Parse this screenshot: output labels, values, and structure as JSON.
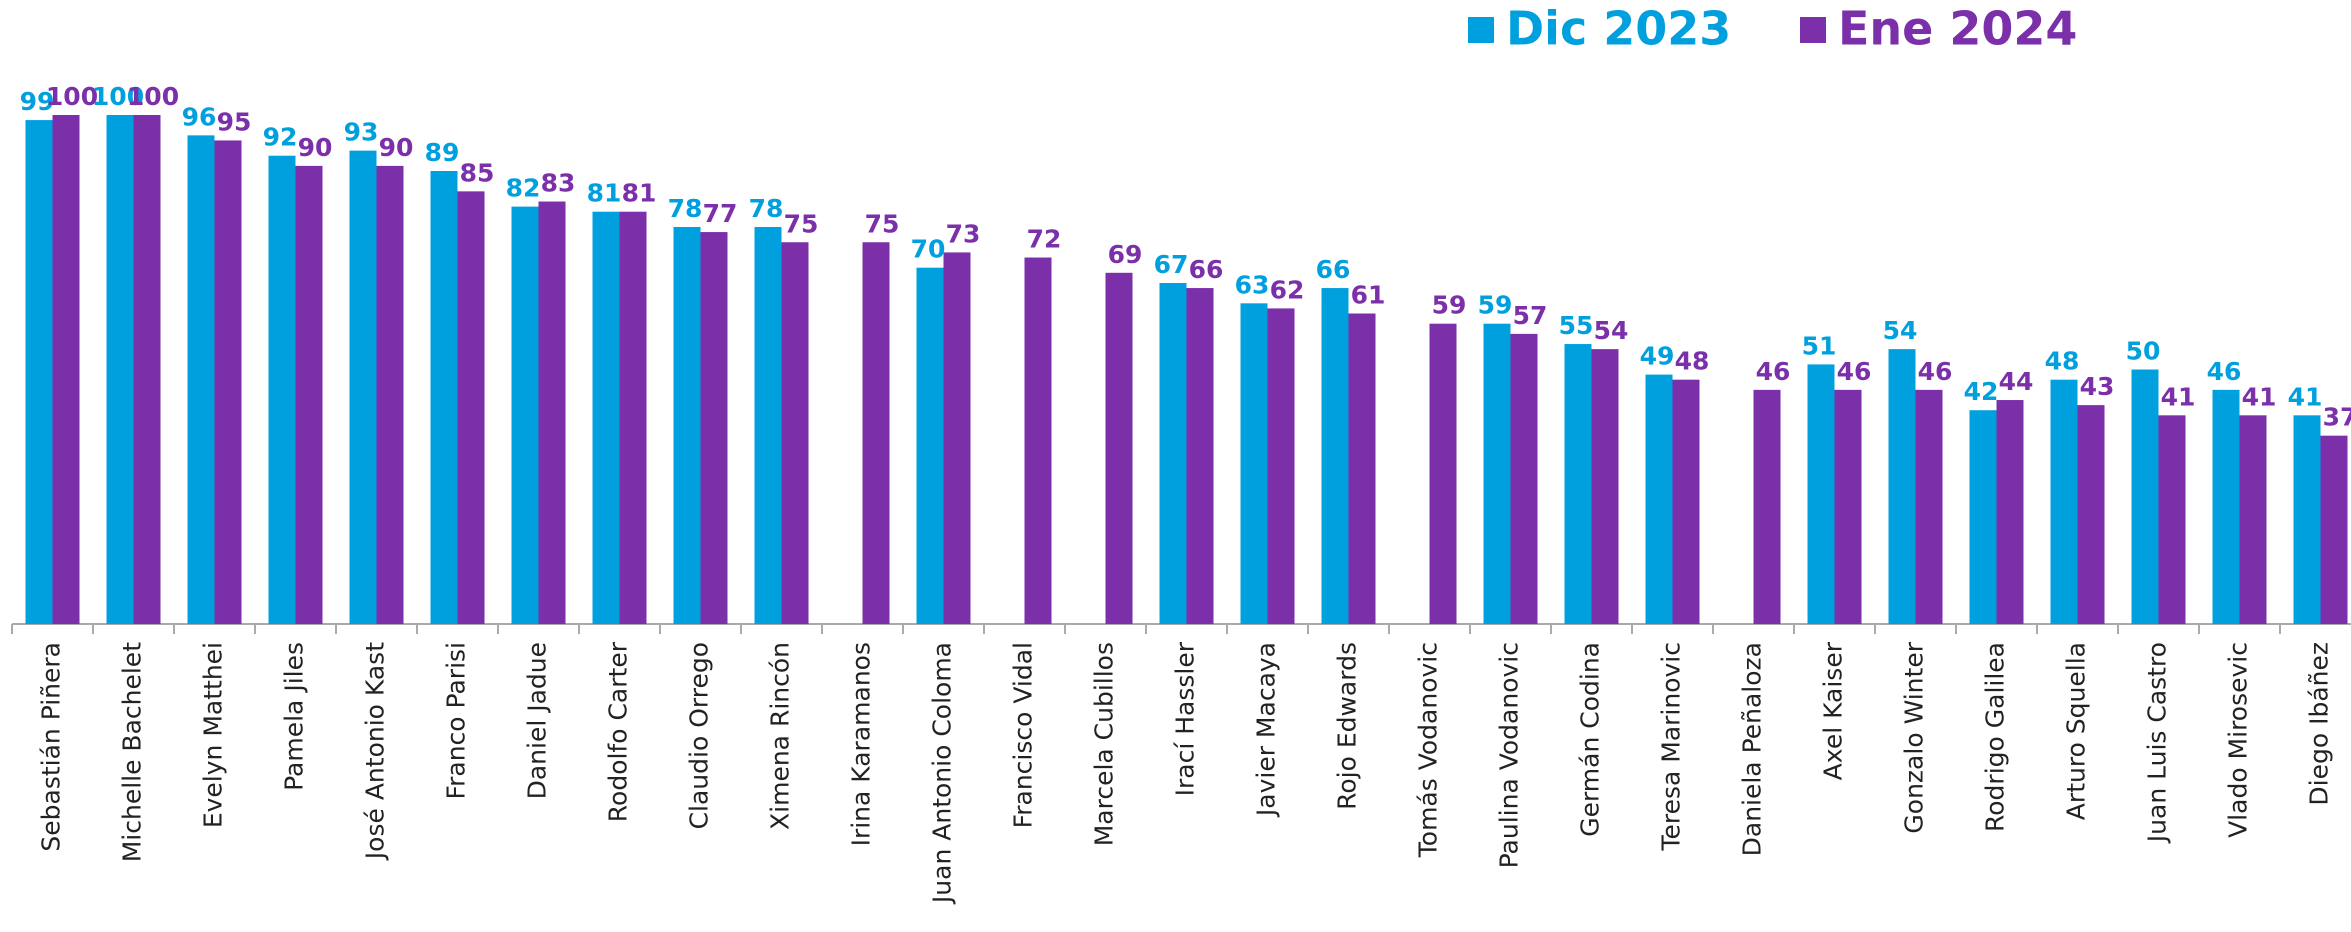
{
  "chart_data": {
    "type": "bar",
    "categories": [
      "Sebastián Piñera",
      "Michelle Bachelet",
      "Evelyn Matthei",
      "Pamela Jiles",
      "José Antonio Kast",
      "Franco Parisi",
      "Daniel Jadue",
      "Rodolfo Carter",
      "Claudio Orrego",
      "Ximena Rincón",
      "Irina Karamanos",
      "Juan Antonio Coloma",
      "Francisco Vidal",
      "Marcela Cubillos",
      "Irací Hassler",
      "Javier Macaya",
      "Rojo Edwards",
      "Tomás Vodanovic",
      "Paulina Vodanovic",
      "Germán Codina",
      "Teresa Marinovic",
      "Daniela Peñaloza",
      "Axel Kaiser",
      "Gonzalo Winter",
      "Rodrigo Galilea",
      "Arturo Squella",
      "Juan Luis Castro",
      "Vlado Mirosevic",
      "Diego Ibáñez"
    ],
    "series": [
      {
        "name": "Dic 2023",
        "color": "#00a0df",
        "values": [
          99,
          100,
          96,
          92,
          93,
          89,
          82,
          81,
          78,
          78,
          null,
          70,
          null,
          null,
          67,
          63,
          66,
          null,
          59,
          55,
          49,
          null,
          51,
          54,
          42,
          48,
          50,
          46,
          41
        ]
      },
      {
        "name": "Ene 2024",
        "color": "#7b2fa9",
        "values": [
          100,
          100,
          95,
          90,
          90,
          85,
          83,
          81,
          77,
          75,
          75,
          73,
          72,
          69,
          66,
          62,
          61,
          59,
          57,
          54,
          48,
          46,
          46,
          46,
          44,
          43,
          41,
          41,
          37
        ]
      }
    ],
    "legend": "top-right"
  }
}
